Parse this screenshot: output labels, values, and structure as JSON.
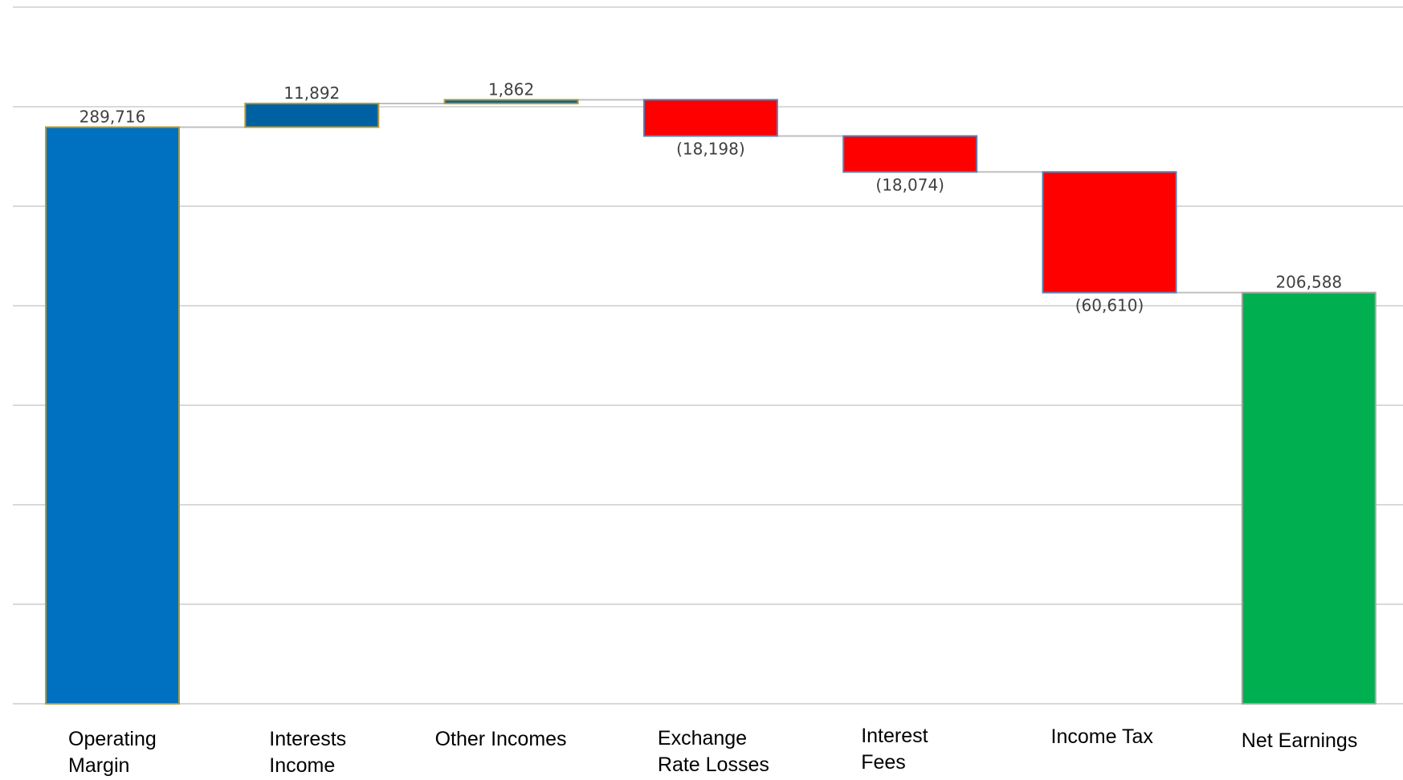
{
  "chart_data": {
    "type": "waterfall",
    "title": "",
    "xlabel": "",
    "ylabel": "",
    "ylim": [
      0,
      350000
    ],
    "grid": true,
    "legend": "none",
    "categories": [
      [
        "Operating",
        "Margin"
      ],
      [
        "Interests",
        "Income"
      ],
      [
        "Other Incomes"
      ],
      [
        "Exchange",
        "Rate Losses"
      ],
      [
        "Interest",
        "Fees"
      ],
      [
        "Income Tax"
      ],
      [
        "Net Earnings"
      ]
    ],
    "values": [
      289716,
      11892,
      1862,
      -18198,
      -18074,
      -60610,
      206588
    ],
    "kinds": [
      "total",
      "delta",
      "delta",
      "delta",
      "delta",
      "delta",
      "total"
    ],
    "labels": [
      "289,716",
      "11,892",
      "1,862",
      "(18,198)",
      "(18,074)",
      "(60,610)",
      "206,588"
    ],
    "colors": [
      "#0070c0",
      "#0061a2",
      "#0061a2",
      "#ff0000",
      "#ff0000",
      "#ff0000",
      "#00b050"
    ],
    "outline_colors": [
      "#b49a3a",
      "#b49a3a",
      "#b49a3a",
      "#5b7fb3",
      "#5b7fb3",
      "#5b7fb3",
      "#a5a5a5"
    ]
  }
}
